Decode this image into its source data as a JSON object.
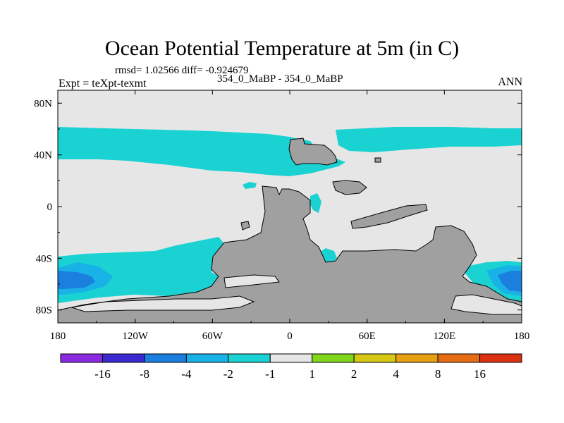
{
  "figure": {
    "title": "Ocean Potential Temperature at 5m (in C)",
    "stats": "rmsd= 1.02566 diff= -0.924679",
    "left_label": "Expt = teXpt-texmt",
    "center_label": "354_0_MaBP - 354_0_MaBP",
    "right_label": "ANN"
  },
  "chart_data": {
    "type": "heatmap",
    "title": "Ocean Potential Temperature at 5m (in C)",
    "projection": "cylindrical equidistant",
    "lon_range": [
      -180,
      180
    ],
    "lat_range": [
      -90,
      90
    ],
    "x_tick_labels": [
      "180",
      "120W",
      "60W",
      "0",
      "60E",
      "120E",
      "180"
    ],
    "x_tick_values": [
      -180,
      -120,
      -60,
      0,
      60,
      120,
      180
    ],
    "y_tick_labels": [
      "80N",
      "40N",
      "0",
      "40S",
      "80S"
    ],
    "y_tick_values": [
      80,
      40,
      0,
      -40,
      -80
    ],
    "colorbar": {
      "levels": [
        -16,
        -8,
        -4,
        -2,
        -1,
        1,
        2,
        4,
        8,
        16
      ],
      "level_labels": [
        "-16",
        "-8",
        "-4",
        "-2",
        "-1",
        "1",
        "2",
        "4",
        "8",
        "16"
      ],
      "colors": [
        "#8a2be2",
        "#3a2ad0",
        "#1b7fe0",
        "#19b2e6",
        "#1ad2d2",
        "#e6e6e6",
        "#7fd61a",
        "#d6c814",
        "#e6a014",
        "#e66c14",
        "#dc3214"
      ]
    },
    "colors": {
      "land": "#a0a0a0",
      "ocean_background": "#e6e6e6",
      "anomaly_light": "#1ad2d2",
      "anomaly_medium": "#19b2e6",
      "anomaly_strong": "#1b7fe0"
    }
  }
}
